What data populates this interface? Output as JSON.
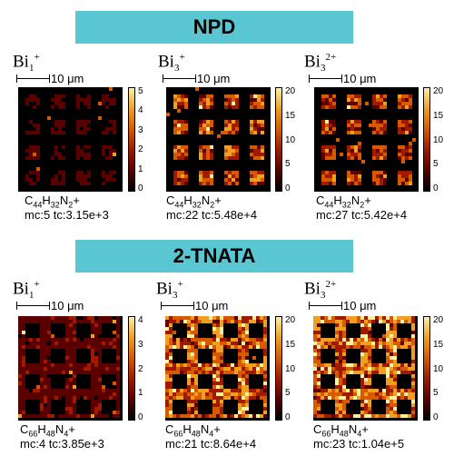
{
  "banners": {
    "top": "NPD",
    "bottom": "2-TNATA"
  },
  "scale_label": "10 μm",
  "ions": {
    "bi1_base": "Bi",
    "bi1_sub": "1",
    "bi1_sup": "+",
    "bi3_base": "Bi",
    "bi3_sub": "3",
    "bi3_sup": "+",
    "bi32_base": "Bi",
    "bi32_sub": "3",
    "bi32_sup": "2+"
  },
  "formulas": {
    "npd": {
      "c": "C",
      "c_n": "44",
      "h": "H",
      "h_n": "32",
      "n": "N",
      "n_n": "2",
      "charge": "+"
    },
    "tnata": {
      "c": "C",
      "c_n": "66",
      "h": "H",
      "h_n": "48",
      "n": "N",
      "n_n": "4",
      "charge": "+"
    }
  },
  "panels": [
    {
      "counts": "mc:5 tc:3.15e+3",
      "cbar_ticks": [
        "5",
        "4",
        "3",
        "2",
        "1",
        "0"
      ],
      "intensity": 0.25,
      "contrast": "low-squares"
    },
    {
      "counts": "mc:22 tc:5.48e+4",
      "cbar_ticks": [
        "20",
        "15",
        "10",
        "5",
        "0"
      ],
      "intensity": 0.6,
      "contrast": "bright-squares"
    },
    {
      "counts": "mc:27 tc:5.42e+4",
      "cbar_ticks": [
        "20",
        "15",
        "10",
        "5",
        "0"
      ],
      "intensity": 0.55,
      "contrast": "bright-squares"
    },
    {
      "counts": "mc:4 tc:3.85e+3",
      "cbar_ticks": [
        "4",
        "3",
        "2",
        "1",
        "0"
      ],
      "intensity": 0.25,
      "contrast": "dark-squares"
    },
    {
      "counts": "mc:21 tc:8.64e+4",
      "cbar_ticks": [
        "20",
        "15",
        "10",
        "5",
        "0"
      ],
      "intensity": 0.7,
      "contrast": "dark-squares"
    },
    {
      "counts": "mc:23 tc:1.04e+5",
      "cbar_ticks": [
        "20",
        "15",
        "10",
        "5",
        "0"
      ],
      "intensity": 0.75,
      "contrast": "dark-squares"
    }
  ],
  "colors": {
    "banner": "#59c6d2",
    "colormap": [
      "#000000",
      "#5a0000",
      "#a01a00",
      "#d85a00",
      "#f0a020",
      "#fff0a0"
    ]
  }
}
